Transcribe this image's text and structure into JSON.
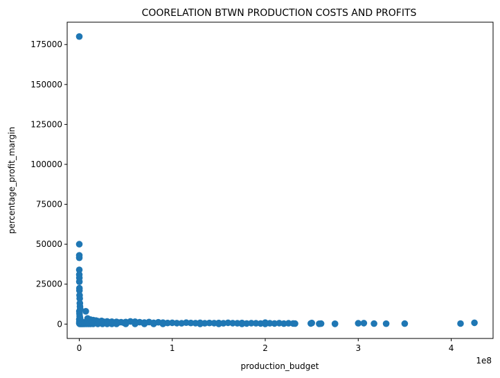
{
  "chart_data": {
    "type": "scatter",
    "title": "COORELATION BTWN PRODUCTION COSTS AND PROFITS",
    "xlabel": "production_budget",
    "ylabel": "percentage_profit_margin",
    "x_offset_label": "1e8",
    "x_tick_values": [
      0,
      100000000,
      200000000,
      300000000,
      400000000
    ],
    "x_tick_labels": [
      "0",
      "1",
      "2",
      "3",
      "4"
    ],
    "y_tick_values": [
      0,
      25000,
      50000,
      75000,
      100000,
      125000,
      150000,
      175000
    ],
    "y_tick_labels": [
      "0",
      "25000",
      "50000",
      "75000",
      "100000",
      "125000",
      "150000",
      "175000"
    ],
    "xlim": [
      -13000000,
      445000000
    ],
    "ylim": [
      -9000,
      189000
    ],
    "grid": false,
    "marker_color": "#1f77b4",
    "x": [
      0,
      7000,
      15000,
      25000,
      40000,
      60000,
      80000,
      100000,
      150000,
      200000,
      300000,
      450000,
      600000,
      800000,
      1000000,
      0,
      50000,
      120000,
      250000,
      400000,
      700000,
      1000000,
      1300000,
      100000,
      200000,
      300000,
      500000,
      700000,
      900000,
      1200000,
      1500000,
      1800000,
      2200000,
      2600000,
      3000000,
      3500000,
      4000000,
      4500000,
      5000000,
      6000000,
      7000000,
      8000000,
      9000000,
      10000000,
      11000000,
      12000000,
      13000000,
      14000000,
      15000000,
      500000,
      1500000,
      2500000,
      3500000,
      4500000,
      6000000,
      8000000,
      10000000,
      12000000,
      16000000,
      18000000,
      20000000,
      22000000,
      24000000,
      26000000,
      28000000,
      30000000,
      32000000,
      35000000,
      38000000,
      40000000,
      42000000,
      45000000,
      48000000,
      50000000,
      55000000,
      60000000,
      65000000,
      70000000,
      75000000,
      80000000,
      85000000,
      90000000,
      95000000,
      15000000,
      20000000,
      25000000,
      30000000,
      35000000,
      40000000,
      50000000,
      60000000,
      70000000,
      80000000,
      90000000,
      100000000,
      105000000,
      110000000,
      115000000,
      120000000,
      125000000,
      130000000,
      135000000,
      140000000,
      145000000,
      150000000,
      155000000,
      160000000,
      165000000,
      170000000,
      175000000,
      180000000,
      185000000,
      190000000,
      195000000,
      200000000,
      205000000,
      210000000,
      215000000,
      220000000,
      225000000,
      230000000,
      232000000,
      130000000,
      150000000,
      175000000,
      200000000,
      249000000,
      250000000,
      258000000,
      260000000,
      275000000,
      275000000,
      300000000,
      306000000,
      317000000,
      330000000,
      350000000,
      410000000,
      425000000
    ],
    "y": [
      180000,
      50000,
      43000,
      41500,
      34000,
      31000,
      29000,
      26500,
      22500,
      21000,
      18000,
      16000,
      13000,
      11000,
      9500,
      500,
      3000,
      8000,
      6500,
      5000,
      4000,
      3000,
      2000,
      1500,
      1000,
      500,
      1800,
      1200,
      900,
      700,
      400,
      1100,
      600,
      300,
      900,
      500,
      300,
      700,
      400,
      1200,
      8000,
      600,
      3500,
      2000,
      1000,
      2800,
      500,
      1500,
      2500,
      100,
      100,
      100,
      100,
      100,
      100,
      100,
      100,
      100,
      1500,
      2200,
      1800,
      1200,
      2000,
      1500,
      1000,
      1700,
      1200,
      1500,
      900,
      1400,
      1000,
      1200,
      800,
      1300,
      1700,
      1500,
      1200,
      1000,
      1300,
      800,
      1100,
      900,
      700,
      100,
      100,
      100,
      100,
      100,
      100,
      100,
      100,
      100,
      100,
      100,
      800,
      600,
      500,
      900,
      700,
      600,
      800,
      500,
      700,
      600,
      700,
      500,
      800,
      600,
      500,
      700,
      400,
      600,
      500,
      400,
      900,
      500,
      400,
      600,
      300,
      500,
      400,
      300,
      100,
      100,
      100,
      100,
      400,
      700,
      200,
      300,
      200,
      150,
      500,
      600,
      300,
      250,
      300,
      350,
      800
    ]
  }
}
